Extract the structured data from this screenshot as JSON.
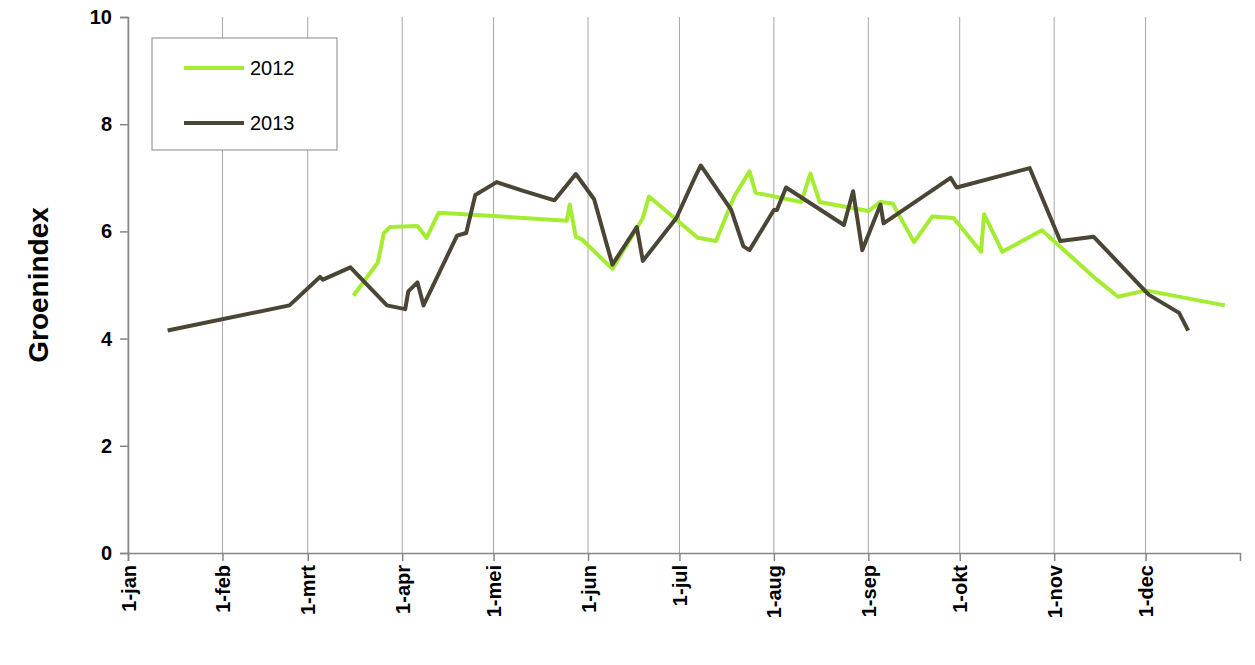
{
  "chart_data": {
    "type": "line",
    "y_label": "Groenindex",
    "xlim": [
      0,
      365
    ],
    "xticks": [
      {
        "value": 0,
        "label": "1-jan"
      },
      {
        "value": 31,
        "label": "1-feb"
      },
      {
        "value": 59,
        "label": "1-mrt"
      },
      {
        "value": 90,
        "label": "1-apr"
      },
      {
        "value": 120,
        "label": "1-mei"
      },
      {
        "value": 151,
        "label": "1-jun"
      },
      {
        "value": 181,
        "label": "1-jul"
      },
      {
        "value": 212,
        "label": "1-aug"
      },
      {
        "value": 243,
        "label": "1-sep"
      },
      {
        "value": 273,
        "label": "1-okt"
      },
      {
        "value": 304,
        "label": "1-nov"
      },
      {
        "value": 334,
        "label": "1-dec"
      }
    ],
    "ylim": [
      0,
      10
    ],
    "yticks": [
      0,
      2,
      4,
      6,
      8,
      10
    ],
    "grid": "x",
    "legend": "top-left",
    "series": [
      {
        "name": "2012",
        "color": "#a4ec32",
        "x": [
          74,
          82,
          84,
          86,
          95,
          98,
          102,
          144,
          145,
          147,
          149,
          159,
          169,
          171,
          187,
          193,
          199,
          204,
          206,
          221,
          224,
          227,
          243,
          247,
          251,
          258,
          264,
          271,
          280,
          281,
          287,
          300,
          318,
          325,
          334,
          360
        ],
        "values": [
          4.8,
          5.42,
          5.97,
          6.08,
          6.1,
          5.88,
          6.35,
          6.2,
          6.5,
          5.9,
          5.85,
          5.3,
          6.25,
          6.65,
          5.88,
          5.82,
          6.65,
          7.12,
          6.72,
          6.55,
          7.08,
          6.55,
          6.38,
          6.55,
          6.52,
          5.8,
          6.28,
          6.25,
          5.62,
          6.32,
          5.62,
          6.02,
          5.1,
          4.78,
          4.9,
          4.62
        ]
      },
      {
        "name": "2013",
        "color": "#4a4535",
        "x": [
          13,
          53,
          63,
          64,
          73,
          85,
          91,
          92,
          95,
          97,
          108,
          111,
          114,
          121,
          130,
          140,
          147,
          153,
          159,
          167,
          169,
          180,
          186,
          188,
          198,
          202,
          204,
          212,
          213,
          216,
          235,
          238,
          241,
          247,
          248,
          270,
          272,
          296,
          306,
          317,
          335,
          345,
          348
        ],
        "values": [
          4.15,
          4.62,
          5.15,
          5.1,
          5.33,
          4.62,
          4.55,
          4.88,
          5.05,
          4.62,
          5.92,
          5.97,
          6.68,
          6.92,
          6.75,
          6.58,
          7.07,
          6.6,
          5.38,
          6.08,
          5.45,
          6.25,
          7.0,
          7.23,
          6.4,
          5.72,
          5.65,
          6.4,
          6.4,
          6.82,
          6.12,
          6.75,
          5.65,
          6.5,
          6.15,
          7.0,
          6.82,
          7.18,
          5.82,
          5.9,
          4.82,
          4.48,
          4.15
        ]
      }
    ]
  }
}
